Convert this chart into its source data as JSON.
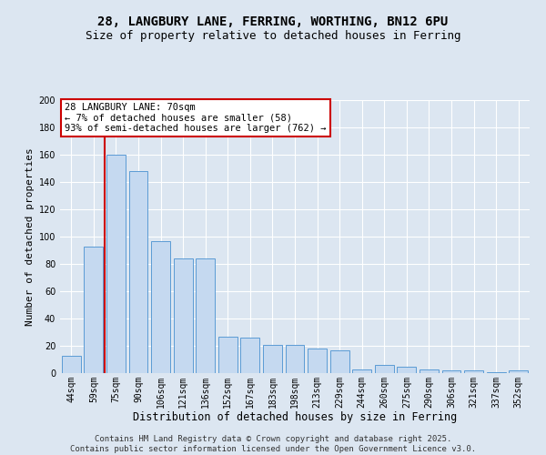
{
  "title_line1": "28, LANGBURY LANE, FERRING, WORTHING, BN12 6PU",
  "title_line2": "Size of property relative to detached houses in Ferring",
  "xlabel": "Distribution of detached houses by size in Ferring",
  "ylabel": "Number of detached properties",
  "categories": [
    "44sqm",
    "59sqm",
    "75sqm",
    "90sqm",
    "106sqm",
    "121sqm",
    "136sqm",
    "152sqm",
    "167sqm",
    "183sqm",
    "198sqm",
    "213sqm",
    "229sqm",
    "244sqm",
    "260sqm",
    "275sqm",
    "290sqm",
    "306sqm",
    "321sqm",
    "337sqm",
    "352sqm"
  ],
  "values": [
    13,
    93,
    160,
    148,
    97,
    84,
    84,
    27,
    26,
    21,
    21,
    18,
    17,
    3,
    6,
    5,
    3,
    2,
    2,
    1,
    2
  ],
  "bar_color": "#c5d9f0",
  "bar_edge_color": "#5b9bd5",
  "vline_x_index": 1,
  "vline_color": "#cc0000",
  "annotation_text": "28 LANGBURY LANE: 70sqm\n← 7% of detached houses are smaller (58)\n93% of semi-detached houses are larger (762) →",
  "annotation_box_color": "#ffffff",
  "annotation_box_edge_color": "#cc0000",
  "ylim": [
    0,
    200
  ],
  "yticks": [
    0,
    20,
    40,
    60,
    80,
    100,
    120,
    140,
    160,
    180,
    200
  ],
  "background_color": "#dce6f1",
  "plot_bg_color": "#dce6f1",
  "footer_text": "Contains HM Land Registry data © Crown copyright and database right 2025.\nContains public sector information licensed under the Open Government Licence v3.0.",
  "title_fontsize": 10,
  "subtitle_fontsize": 9,
  "xlabel_fontsize": 8.5,
  "ylabel_fontsize": 8,
  "tick_fontsize": 7,
  "annotation_fontsize": 7.5,
  "footer_fontsize": 6.5
}
